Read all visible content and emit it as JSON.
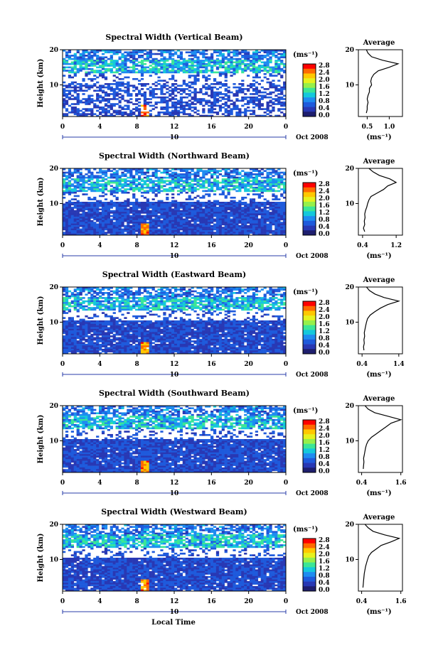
{
  "figure": {
    "xlabel": "Local Time",
    "shared": {
      "ylabel": "Height (km)",
      "unit_label": "(ms⁻¹)",
      "average_title": "Average",
      "average_xlabel": "(ms⁻¹)",
      "date_label": "Oct 2008",
      "day_label": "10",
      "x_ticks": [
        "0",
        "4",
        "8",
        "12",
        "16",
        "20",
        "0"
      ],
      "y_ticks": [
        "20",
        "10"
      ],
      "colorbar_ticks": [
        "2.8",
        "2.4",
        "2.0",
        "1.6",
        "1.2",
        "0.8",
        "0.4",
        "0.0"
      ],
      "colorbar_colors": [
        "#ff0000",
        "#ff6a00",
        "#ffc800",
        "#e6f21e",
        "#96f04a",
        "#3ce696",
        "#14c8dc",
        "#1e8cf0",
        "#1e5adc",
        "#2838b4",
        "#1e1e6e"
      ]
    },
    "panels": [
      {
        "title": "Spectral Width (Vertical Beam)",
        "avg_ticks": [
          "0.5",
          "1.0"
        ]
      },
      {
        "title": "Spectral Width (Northward Beam)",
        "avg_ticks": [
          "0.4",
          "1.2"
        ]
      },
      {
        "title": "Spectral Width (Eastward Beam)",
        "avg_ticks": [
          "0.4",
          "1.4"
        ]
      },
      {
        "title": "Spectral Width (Southward Beam)",
        "avg_ticks": [
          "0.4",
          "1.6"
        ]
      },
      {
        "title": "Spectral Width (Westward Beam)",
        "avg_ticks": [
          "0.4",
          "1.6"
        ]
      }
    ]
  },
  "chart_data": [
    {
      "type": "heatmap",
      "title": "Spectral Width (Vertical Beam)",
      "xlabel": "Local Time",
      "ylabel": "Height (km)",
      "xlim": [
        0,
        24
      ],
      "ylim": [
        1,
        20
      ],
      "x_ticks": [
        0,
        4,
        8,
        12,
        16,
        20,
        24
      ],
      "y_ticks": [
        10,
        20
      ],
      "colorbar": {
        "label": "(ms⁻¹)",
        "range": [
          0.0,
          2.8
        ],
        "ticks": [
          0.0,
          0.4,
          0.8,
          1.2,
          1.6,
          2.0,
          2.4,
          2.8
        ]
      },
      "average_profile": {
        "title": "Average",
        "xlabel": "(ms⁻¹)",
        "xlim": [
          0.3,
          1.3
        ],
        "x_ticks": [
          0.5,
          1.0
        ],
        "ylim": [
          1,
          20
        ],
        "height_km": [
          2,
          3,
          4,
          5,
          6,
          7,
          8,
          9,
          10,
          11,
          12,
          13,
          14,
          15,
          16,
          17,
          18,
          19,
          20
        ],
        "width": [
          0.48,
          0.5,
          0.5,
          0.52,
          0.5,
          0.52,
          0.55,
          0.55,
          0.6,
          0.58,
          0.6,
          0.65,
          0.75,
          1.0,
          1.2,
          0.85,
          0.6,
          0.52,
          0.48
        ]
      }
    },
    {
      "type": "heatmap",
      "title": "Spectral Width (Northward Beam)",
      "xlabel": "Local Time",
      "ylabel": "Height (km)",
      "xlim": [
        0,
        24
      ],
      "ylim": [
        1,
        20
      ],
      "x_ticks": [
        0,
        4,
        8,
        12,
        16,
        20,
        24
      ],
      "y_ticks": [
        10,
        20
      ],
      "colorbar": {
        "label": "(ms⁻¹)",
        "range": [
          0.0,
          2.8
        ],
        "ticks": [
          0.0,
          0.4,
          0.8,
          1.2,
          1.6,
          2.0,
          2.4,
          2.8
        ]
      },
      "average_profile": {
        "title": "Average",
        "xlabel": "(ms⁻¹)",
        "xlim": [
          0.3,
          1.35
        ],
        "x_ticks": [
          0.4,
          1.2
        ],
        "ylim": [
          1,
          20
        ],
        "height_km": [
          2,
          3,
          4,
          5,
          6,
          7,
          8,
          9,
          10,
          11,
          12,
          13,
          14,
          15,
          16,
          17,
          18,
          19,
          20
        ],
        "width": [
          0.45,
          0.42,
          0.45,
          0.44,
          0.46,
          0.45,
          0.47,
          0.5,
          0.52,
          0.55,
          0.6,
          0.75,
          0.9,
          1.0,
          1.2,
          1.05,
          0.8,
          0.65,
          0.55
        ]
      }
    },
    {
      "type": "heatmap",
      "title": "Spectral Width (Eastward Beam)",
      "xlabel": "Local Time",
      "ylabel": "Height (km)",
      "xlim": [
        0,
        24
      ],
      "ylim": [
        1,
        20
      ],
      "x_ticks": [
        0,
        4,
        8,
        12,
        16,
        20,
        24
      ],
      "y_ticks": [
        10,
        20
      ],
      "colorbar": {
        "label": "(ms⁻¹)",
        "range": [
          0.0,
          2.8
        ],
        "ticks": [
          0.0,
          0.4,
          0.8,
          1.2,
          1.6,
          2.0,
          2.4,
          2.8
        ]
      },
      "average_profile": {
        "title": "Average",
        "xlabel": "(ms⁻¹)",
        "xlim": [
          0.3,
          1.5
        ],
        "x_ticks": [
          0.4,
          1.4
        ],
        "ylim": [
          1,
          20
        ],
        "height_km": [
          2,
          3,
          4,
          5,
          6,
          7,
          8,
          9,
          10,
          11,
          12,
          13,
          14,
          15,
          16,
          17,
          18,
          19,
          20
        ],
        "width": [
          0.45,
          0.44,
          0.46,
          0.45,
          0.47,
          0.46,
          0.48,
          0.5,
          0.52,
          0.55,
          0.62,
          0.75,
          0.9,
          1.1,
          1.4,
          1.0,
          0.75,
          0.6,
          0.52
        ]
      }
    },
    {
      "type": "heatmap",
      "title": "Spectral Width (Southward Beam)",
      "xlabel": "Local Time",
      "ylabel": "Height (km)",
      "xlim": [
        0,
        24
      ],
      "ylim": [
        1,
        20
      ],
      "x_ticks": [
        0,
        4,
        8,
        12,
        16,
        20,
        24
      ],
      "y_ticks": [
        10,
        20
      ],
      "colorbar": {
        "label": "(ms⁻¹)",
        "range": [
          0.0,
          2.8
        ],
        "ticks": [
          0.0,
          0.4,
          0.8,
          1.2,
          1.6,
          2.0,
          2.4,
          2.8
        ]
      },
      "average_profile": {
        "title": "Average",
        "xlabel": "(ms⁻¹)",
        "xlim": [
          0.3,
          1.65
        ],
        "x_ticks": [
          0.4,
          1.6
        ],
        "ylim": [
          1,
          20
        ],
        "height_km": [
          2,
          3,
          4,
          5,
          6,
          7,
          8,
          9,
          10,
          11,
          12,
          13,
          14,
          15,
          16,
          17,
          18,
          19,
          20
        ],
        "width": [
          0.45,
          0.46,
          0.47,
          0.46,
          0.48,
          0.5,
          0.52,
          0.55,
          0.6,
          0.7,
          0.85,
          1.0,
          1.15,
          1.3,
          1.6,
          1.2,
          0.8,
          0.6,
          0.5
        ]
      }
    },
    {
      "type": "heatmap",
      "title": "Spectral Width (Westward Beam)",
      "xlabel": "Local Time",
      "ylabel": "Height (km)",
      "xlim": [
        0,
        24
      ],
      "ylim": [
        1,
        20
      ],
      "x_ticks": [
        0,
        4,
        8,
        12,
        16,
        20,
        24
      ],
      "y_ticks": [
        10,
        20
      ],
      "colorbar": {
        "label": "(ms⁻¹)",
        "range": [
          0.0,
          2.8
        ],
        "ticks": [
          0.0,
          0.4,
          0.8,
          1.2,
          1.6,
          2.0,
          2.4,
          2.8
        ]
      },
      "average_profile": {
        "title": "Average",
        "xlabel": "(ms⁻¹)",
        "xlim": [
          0.3,
          1.65
        ],
        "x_ticks": [
          0.4,
          1.6
        ],
        "ylim": [
          1,
          20
        ],
        "height_km": [
          2,
          3,
          4,
          5,
          6,
          7,
          8,
          9,
          10,
          11,
          12,
          13,
          14,
          15,
          16,
          17,
          18,
          19,
          20
        ],
        "width": [
          0.44,
          0.45,
          0.46,
          0.47,
          0.48,
          0.5,
          0.52,
          0.55,
          0.58,
          0.62,
          0.7,
          0.85,
          1.0,
          1.3,
          1.55,
          1.1,
          0.75,
          0.6,
          0.5
        ]
      }
    }
  ]
}
